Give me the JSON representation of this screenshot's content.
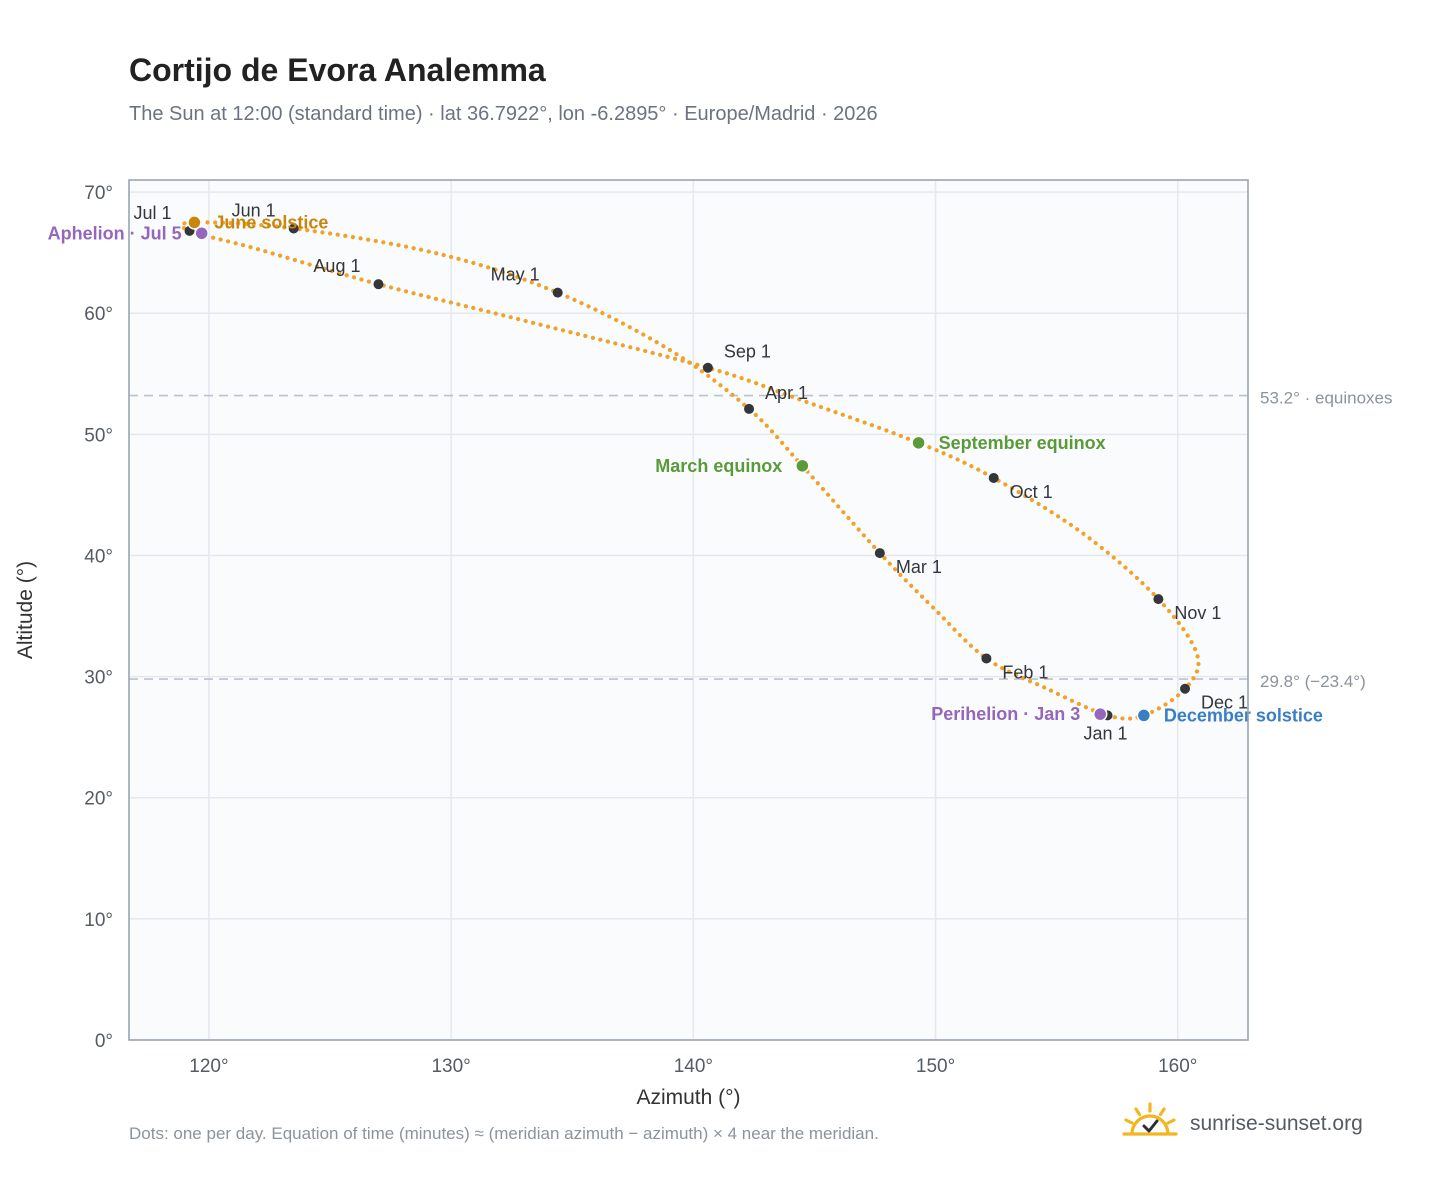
{
  "title": "Cortijo de Evora Analemma",
  "subtitle": "The Sun at 12:00 (standard time) · lat 36.7922°, lon -6.2895° · Europe/Madrid · 2026",
  "footnote": "Dots: one per day. Equation of time (minutes) ≈ (meridian azimuth − azimuth) × 4 near the meridian.",
  "brand": {
    "name": "sunrise-sunset.org",
    "icon": "sun-logo-icon"
  },
  "colors": {
    "curve": "#f0a22a",
    "month_dot": "#33363b",
    "june_solstice": "#c8860d",
    "december_solstice": "#3a7fc4",
    "equinox": "#5a9a38",
    "apsis": "#9566bd",
    "reference_line": "#b9c3cf",
    "plot_bg": "#f9fbfd",
    "grid": "#e4e9ef",
    "frame": "#9aa4b2"
  },
  "chart_data": {
    "type": "scatter",
    "title": "Cortijo de Evora Analemma",
    "xlabel": "Azimuth (°)",
    "ylabel": "Altitude (°)",
    "xlim": [
      116.7,
      162.9
    ],
    "ylim": [
      0,
      71
    ],
    "x_ticks": [
      120,
      130,
      140,
      150,
      160
    ],
    "y_ticks": [
      0,
      10,
      20,
      30,
      40,
      50,
      60,
      70
    ],
    "x_tick_labels": [
      "120°",
      "130°",
      "140°",
      "150°",
      "160°"
    ],
    "y_tick_labels": [
      "0°",
      "10°",
      "20°",
      "30°",
      "40°",
      "50°",
      "60°",
      "70°"
    ],
    "grid": true,
    "series": [
      {
        "path_points": [
          {
            "date": "Jan 1",
            "az": 157.1,
            "alt": 26.8
          },
          {
            "date": "Jan 20",
            "az": 154.6,
            "alt": 29.0
          },
          {
            "date": "Feb 1",
            "az": 152.1,
            "alt": 31.5
          },
          {
            "date": "Feb 15",
            "az": 149.9,
            "alt": 35.7
          },
          {
            "date": "Mar 1",
            "az": 147.7,
            "alt": 40.2
          },
          {
            "date": "Mar 20",
            "az": 144.5,
            "alt": 47.4
          },
          {
            "date": "Apr 1",
            "az": 142.3,
            "alt": 52.1
          },
          {
            "date": "Apr 15",
            "az": 139.0,
            "alt": 57.0
          },
          {
            "date": "May 1",
            "az": 134.4,
            "alt": 61.7
          },
          {
            "date": "May 15",
            "az": 129.5,
            "alt": 64.9
          },
          {
            "date": "Jun 1",
            "az": 123.5,
            "alt": 67.0
          },
          {
            "date": "Jun 21",
            "az": 119.4,
            "alt": 67.5
          },
          {
            "date": "Jul 1",
            "az": 119.2,
            "alt": 66.8
          },
          {
            "date": "Jul 15",
            "az": 122.0,
            "alt": 65.3
          },
          {
            "date": "Aug 1",
            "az": 127.0,
            "alt": 62.4
          },
          {
            "date": "Aug 15",
            "az": 133.0,
            "alt": 59.4
          },
          {
            "date": "Sep 1",
            "az": 140.6,
            "alt": 55.5
          },
          {
            "date": "Sep 12",
            "az": 144.5,
            "alt": 52.8
          },
          {
            "date": "Sep 23",
            "az": 149.3,
            "alt": 49.3
          },
          {
            "date": "Oct 1",
            "az": 152.4,
            "alt": 46.4
          },
          {
            "date": "Oct 15",
            "az": 156.1,
            "alt": 41.8
          },
          {
            "date": "Nov 1",
            "az": 159.2,
            "alt": 36.4
          },
          {
            "date": "Nov 15",
            "az": 160.8,
            "alt": 31.8
          },
          {
            "date": "Dec 1",
            "az": 160.3,
            "alt": 29.0
          },
          {
            "date": "Dec 21",
            "az": 158.6,
            "alt": 26.8
          },
          {
            "date": "Dec 31",
            "az": 157.1,
            "alt": 26.8
          }
        ]
      }
    ],
    "month_markers": [
      {
        "label": "Jan 1",
        "az": 157.1,
        "alt": 26.8,
        "label_pos": "below"
      },
      {
        "label": "Feb 1",
        "az": 152.1,
        "alt": 31.5,
        "label_pos": "below-right"
      },
      {
        "label": "Mar 1",
        "az": 147.7,
        "alt": 40.2,
        "label_pos": "below-right"
      },
      {
        "label": "Apr 1",
        "az": 142.3,
        "alt": 52.1,
        "label_pos": "above-right"
      },
      {
        "label": "May 1",
        "az": 134.4,
        "alt": 61.7,
        "label_pos": "above-left"
      },
      {
        "label": "Jun 1",
        "az": 123.5,
        "alt": 67.0,
        "label_pos": "above-left"
      },
      {
        "label": "Jul 1",
        "az": 119.2,
        "alt": 66.8,
        "label_pos": "above-left"
      },
      {
        "label": "Aug 1",
        "az": 127.0,
        "alt": 62.4,
        "label_pos": "above-left"
      },
      {
        "label": "Sep 1",
        "az": 140.6,
        "alt": 55.5,
        "label_pos": "above-right"
      },
      {
        "label": "Oct 1",
        "az": 152.4,
        "alt": 46.4,
        "label_pos": "below-right"
      },
      {
        "label": "Nov 1",
        "az": 159.2,
        "alt": 36.4,
        "label_pos": "below-right"
      },
      {
        "label": "Dec 1",
        "az": 160.3,
        "alt": 29.0,
        "label_pos": "below-right"
      }
    ],
    "events": [
      {
        "label": "June solstice",
        "az": 119.4,
        "alt": 67.5,
        "color_key": "june_solstice",
        "label_pos": "right"
      },
      {
        "label": "Aphelion · Jul 5",
        "az": 119.7,
        "alt": 66.6,
        "color_key": "apsis",
        "label_pos": "left"
      },
      {
        "label": "March equinox",
        "az": 144.5,
        "alt": 47.4,
        "color_key": "equinox",
        "label_pos": "left"
      },
      {
        "label": "September equinox",
        "az": 149.3,
        "alt": 49.3,
        "color_key": "equinox",
        "label_pos": "right"
      },
      {
        "label": "Perihelion · Jan 3",
        "az": 156.8,
        "alt": 26.9,
        "color_key": "apsis",
        "label_pos": "left"
      },
      {
        "label": "December solstice",
        "az": 158.6,
        "alt": 26.8,
        "color_key": "december_solstice",
        "label_pos": "right"
      }
    ],
    "reference_lines": [
      {
        "alt": 53.2,
        "label": "53.2° · equinoxes"
      },
      {
        "alt": 29.8,
        "label": "29.8° (−23.4°)"
      }
    ]
  }
}
